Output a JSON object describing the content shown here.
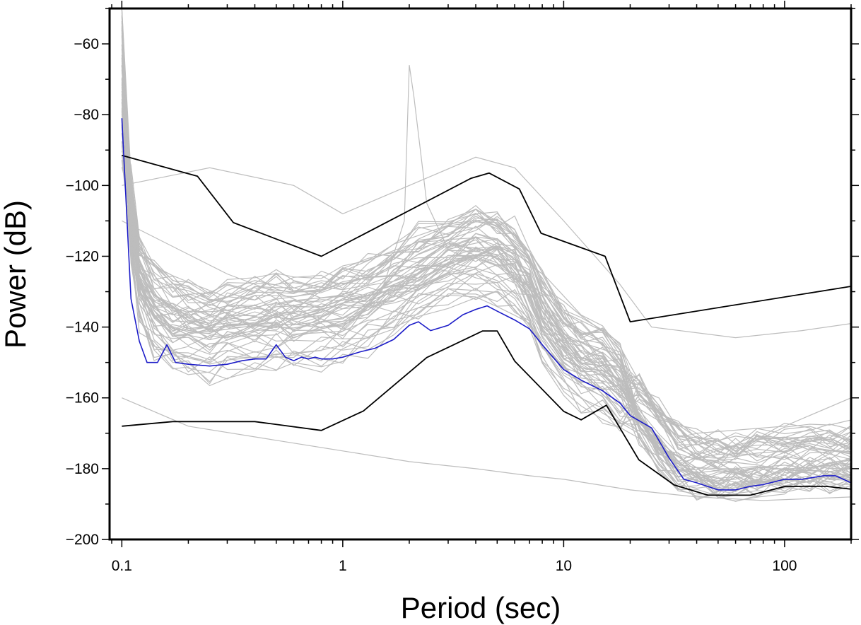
{
  "chart_data": {
    "type": "line",
    "xlabel": "Period (sec)",
    "ylabel": "Power (dB)",
    "x_scale": "log",
    "xlim": [
      0.088,
      200
    ],
    "ylim": [
      -200,
      -50
    ],
    "xticks": [
      {
        "value": 0.1,
        "label": "0.1"
      },
      {
        "value": 1,
        "label": "1"
      },
      {
        "value": 10,
        "label": "10"
      },
      {
        "value": 100,
        "label": "100"
      }
    ],
    "yticks": [
      {
        "value": -60,
        "label": "−60"
      },
      {
        "value": -80,
        "label": "−80"
      },
      {
        "value": -100,
        "label": "−100"
      },
      {
        "value": -120,
        "label": "−120"
      },
      {
        "value": -140,
        "label": "−140"
      },
      {
        "value": -160,
        "label": "−160"
      },
      {
        "value": -180,
        "label": "−180"
      },
      {
        "value": -200,
        "label": "−200"
      }
    ],
    "grid": false,
    "legend": "none",
    "colors": {
      "envelope": "#000000",
      "median": "#1c1cc8",
      "individual": "#bdbdbd"
    },
    "series": [
      {
        "role": "high-noise-model",
        "color": "#000000",
        "x": [
          0.1,
          0.22,
          0.32,
          0.8,
          3.8,
          4.6,
          6.3,
          7.9,
          15.4,
          20,
          200
        ],
        "y": [
          -91.5,
          -97.4,
          -110.5,
          -120,
          -98,
          -96.5,
          -101,
          -113.5,
          -120,
          -138.5,
          -128.5
        ]
      },
      {
        "role": "low-noise-model",
        "color": "#000000",
        "x": [
          0.1,
          0.17,
          0.4,
          0.8,
          1.24,
          2.4,
          4.3,
          5.0,
          6.0,
          10,
          12,
          15.6,
          21.9,
          31.6,
          45,
          70,
          101,
          154,
          200
        ],
        "y": [
          -168,
          -166.7,
          -166.7,
          -169.2,
          -163.7,
          -148.6,
          -141.1,
          -141.1,
          -149.6,
          -163.8,
          -166.2,
          -162.1,
          -177.5,
          -184.6,
          -187.5,
          -187.5,
          -185,
          -185,
          -185.8
        ]
      },
      {
        "role": "median",
        "color": "#1c1cc8",
        "x": [
          0.1,
          0.11,
          0.12,
          0.13,
          0.145,
          0.16,
          0.175,
          0.2,
          0.25,
          0.3,
          0.35,
          0.4,
          0.45,
          0.5,
          0.55,
          0.6,
          0.65,
          0.7,
          0.75,
          0.8,
          0.9,
          1.0,
          1.2,
          1.4,
          1.7,
          2.0,
          2.2,
          2.5,
          3.0,
          3.5,
          4.0,
          4.5,
          5.0,
          6.0,
          7.0,
          8.0,
          10,
          12,
          15,
          18,
          20,
          25,
          30,
          35,
          40,
          50,
          60,
          70,
          80,
          100,
          120,
          150,
          170,
          200
        ],
        "y": [
          -81,
          -132,
          -144,
          -150,
          -150,
          -145,
          -150,
          -150.5,
          -151,
          -150.5,
          -149.5,
          -149,
          -149,
          -145,
          -148.5,
          -149.5,
          -148.5,
          -149,
          -148.5,
          -149,
          -149,
          -148.5,
          -147,
          -146,
          -143.5,
          -139.5,
          -138.5,
          -141,
          -139.5,
          -136.5,
          -135,
          -134,
          -135.5,
          -138,
          -140.5,
          -145,
          -152,
          -155,
          -158,
          -161.5,
          -165,
          -168.5,
          -177,
          -183,
          -184,
          -186,
          -186,
          -185,
          -184.5,
          -183,
          -183,
          -182,
          -182,
          -184
        ]
      }
    ]
  }
}
